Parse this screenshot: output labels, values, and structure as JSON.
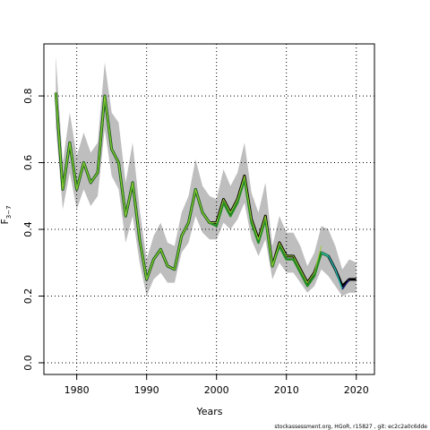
{
  "chart_data": {
    "type": "line",
    "x_label": "Years",
    "y_label": "F",
    "y_label_subscript": "3−7",
    "footer": "stockassessment.org, HGoR, r15827 , git: ec2c2a0c6dde",
    "x": [
      1977,
      1978,
      1979,
      1980,
      1981,
      1982,
      1983,
      1984,
      1985,
      1986,
      1987,
      1988,
      1989,
      1990,
      1991,
      1992,
      1993,
      1994,
      1995,
      1996,
      1997,
      1998,
      1999,
      2000,
      2001,
      2002,
      2003,
      2004,
      2005,
      2006,
      2007,
      2008,
      2009,
      2010,
      2011,
      2012,
      2013,
      2014,
      2015,
      2016,
      2017,
      2018,
      2019,
      2020
    ],
    "band": {
      "color": "#bebebe",
      "upper": [
        0.92,
        0.6,
        0.75,
        0.62,
        0.69,
        0.63,
        0.66,
        0.9,
        0.75,
        0.72,
        0.54,
        0.66,
        0.46,
        0.31,
        0.38,
        0.42,
        0.36,
        0.35,
        0.45,
        0.5,
        0.61,
        0.53,
        0.5,
        0.49,
        0.58,
        0.53,
        0.57,
        0.66,
        0.51,
        0.45,
        0.54,
        0.35,
        0.44,
        0.39,
        0.39,
        0.35,
        0.29,
        0.33,
        0.41,
        0.4,
        0.35,
        0.28,
        0.31,
        0.3
      ],
      "lower": [
        0.71,
        0.46,
        0.57,
        0.46,
        0.52,
        0.47,
        0.5,
        0.7,
        0.56,
        0.52,
        0.36,
        0.44,
        0.3,
        0.2,
        0.25,
        0.27,
        0.24,
        0.24,
        0.33,
        0.36,
        0.44,
        0.39,
        0.37,
        0.37,
        0.42,
        0.4,
        0.43,
        0.48,
        0.37,
        0.32,
        0.37,
        0.25,
        0.3,
        0.27,
        0.27,
        0.24,
        0.21,
        0.23,
        0.28,
        0.26,
        0.23,
        0.2,
        0.21,
        0.21
      ]
    },
    "series": [
      {
        "color": "#000000",
        "width": 3,
        "values": [
          0.81,
          0.52,
          0.66,
          0.52,
          0.6,
          0.54,
          0.57,
          0.8,
          0.64,
          0.6,
          0.44,
          0.54,
          0.37,
          0.25,
          0.31,
          0.34,
          0.29,
          0.28,
          0.38,
          0.42,
          0.52,
          0.45,
          0.42,
          0.42,
          0.49,
          0.45,
          0.49,
          0.56,
          0.43,
          0.37,
          0.44,
          0.29,
          0.36,
          0.32,
          0.32,
          0.28,
          0.24,
          0.27,
          0.33,
          0.32,
          0.28,
          0.23,
          0.25,
          0.25
        ]
      },
      {
        "color": "#228b22",
        "width": 2.5,
        "values": [
          0.81,
          0.52,
          0.66,
          0.52,
          0.6,
          0.54,
          0.57,
          0.8,
          0.64,
          0.6,
          0.44,
          0.54,
          0.37,
          0.25,
          0.31,
          0.34,
          0.29,
          0.28,
          0.38,
          0.42,
          0.52,
          0.45,
          0.42,
          0.41,
          0.48,
          0.44,
          0.48,
          0.55,
          0.42,
          0.36,
          0.43,
          0.29,
          0.35,
          0.31,
          0.31,
          0.27,
          0.23,
          0.26,
          0.33,
          0.32,
          null,
          null,
          null,
          null
        ]
      },
      {
        "color": "#9acd32",
        "width": 1,
        "values": [
          0.81,
          0.52,
          0.66,
          0.52,
          0.6,
          0.54,
          0.57,
          0.8,
          0.64,
          0.6,
          0.44,
          0.54,
          0.37,
          0.25,
          0.31,
          0.34,
          0.29,
          0.28,
          0.38,
          0.42,
          0.52,
          0.45,
          0.42,
          0.42,
          0.49,
          0.45,
          0.49,
          0.56,
          0.43,
          0.37,
          0.44,
          0.29,
          0.36,
          0.32,
          0.32,
          0.28,
          0.24,
          0.27,
          0.35,
          null,
          null,
          null,
          null,
          null
        ]
      },
      {
        "color": "#20b2aa",
        "width": 1.5,
        "values": [
          null,
          null,
          null,
          null,
          null,
          null,
          null,
          null,
          null,
          null,
          null,
          null,
          null,
          null,
          null,
          null,
          null,
          null,
          null,
          null,
          null,
          null,
          null,
          null,
          null,
          null,
          null,
          null,
          null,
          null,
          null,
          null,
          null,
          null,
          null,
          null,
          null,
          null,
          0.33,
          0.32,
          0.28,
          0.22,
          null,
          null
        ]
      },
      {
        "color": "#191970",
        "width": 1.5,
        "values": [
          null,
          null,
          null,
          null,
          null,
          null,
          null,
          null,
          null,
          null,
          null,
          null,
          null,
          null,
          null,
          null,
          null,
          null,
          null,
          null,
          null,
          null,
          null,
          null,
          null,
          null,
          null,
          null,
          null,
          null,
          null,
          null,
          null,
          null,
          null,
          null,
          null,
          null,
          null,
          null,
          null,
          0.22,
          0.25,
          null
        ]
      }
    ],
    "xlim": [
      1975.3,
      2022.6
    ],
    "ylim": [
      -0.035,
      0.956
    ],
    "xticks": [
      1980,
      1990,
      2000,
      2010,
      2020
    ],
    "yticks": [
      {
        "value": 0,
        "label": "0.0"
      },
      {
        "value": 0.2,
        "label": "0.2"
      },
      {
        "value": 0.4,
        "label": "0.4"
      },
      {
        "value": 0.6,
        "label": "0.6"
      },
      {
        "value": 0.8,
        "label": "0.8"
      }
    ],
    "grid": true
  }
}
